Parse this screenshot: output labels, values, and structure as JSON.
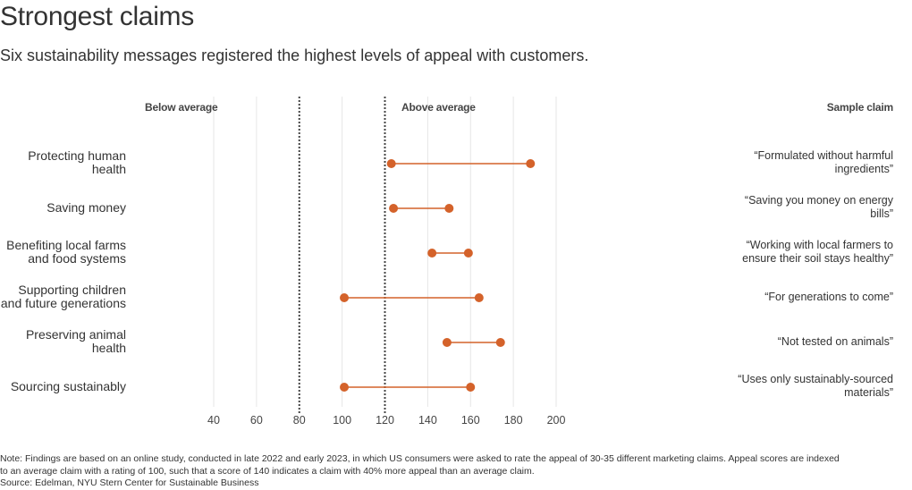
{
  "header": {
    "title": "Strongest claims",
    "subtitle": "Six sustainability messages registered the highest levels of appeal with customers."
  },
  "labels": {
    "below_average": "Below average",
    "above_average": "Above average",
    "sample_claim": "Sample claim"
  },
  "footer": {
    "note_line1": "Note: Findings are based on an online study, conducted in late 2022 and early 2023, in which US consumers were asked to rate the appeal of 30-35 different marketing claims. Appeal scores are indexed",
    "note_line2": "to an average claim with a rating of 100, such that a score of 140 indicates a claim with 40% more appeal than an average claim.",
    "source": "Source: Edelman, NYU Stern Center for Sustainable Business"
  },
  "colors": {
    "accent": "#d4622a",
    "reference_line": "#444444",
    "grid": "#e6e6e6"
  },
  "chart_data": {
    "type": "dumbbell",
    "title": "Strongest claims",
    "subtitle": "Six sustainability messages registered the highest levels of appeal with customers.",
    "xlim": [
      40,
      200
    ],
    "xticks": [
      40,
      60,
      80,
      100,
      120,
      140,
      160,
      180,
      200
    ],
    "reference_lines": [
      80,
      120
    ],
    "grid": true,
    "categories": [
      "Protecting human health",
      "Saving money",
      "Benefiting local farms and food systems",
      "Supporting children and future generations",
      "Preserving animal health",
      "Sourcing sustainably"
    ],
    "category_lines": [
      [
        "Protecting human",
        "health"
      ],
      [
        "Saving money"
      ],
      [
        "Benefiting local farms",
        "and food systems"
      ],
      [
        "Supporting children",
        "and future generations"
      ],
      [
        "Preserving animal",
        "health"
      ],
      [
        "Sourcing sustainably"
      ]
    ],
    "low": [
      123,
      124,
      142,
      101,
      149,
      101
    ],
    "high": [
      188,
      150,
      159,
      164,
      174,
      160
    ],
    "sample_claims": [
      [
        "“Formulated without harmful",
        "ingredients”"
      ],
      [
        "“Saving you money on energy",
        "bills”"
      ],
      [
        "“Working with local farmers to",
        "ensure their soil stays healthy”"
      ],
      [
        "“For generations to come”"
      ],
      [
        "“Not tested on animals”"
      ],
      [
        "“Uses only sustainably-sourced",
        "materials”"
      ]
    ]
  }
}
